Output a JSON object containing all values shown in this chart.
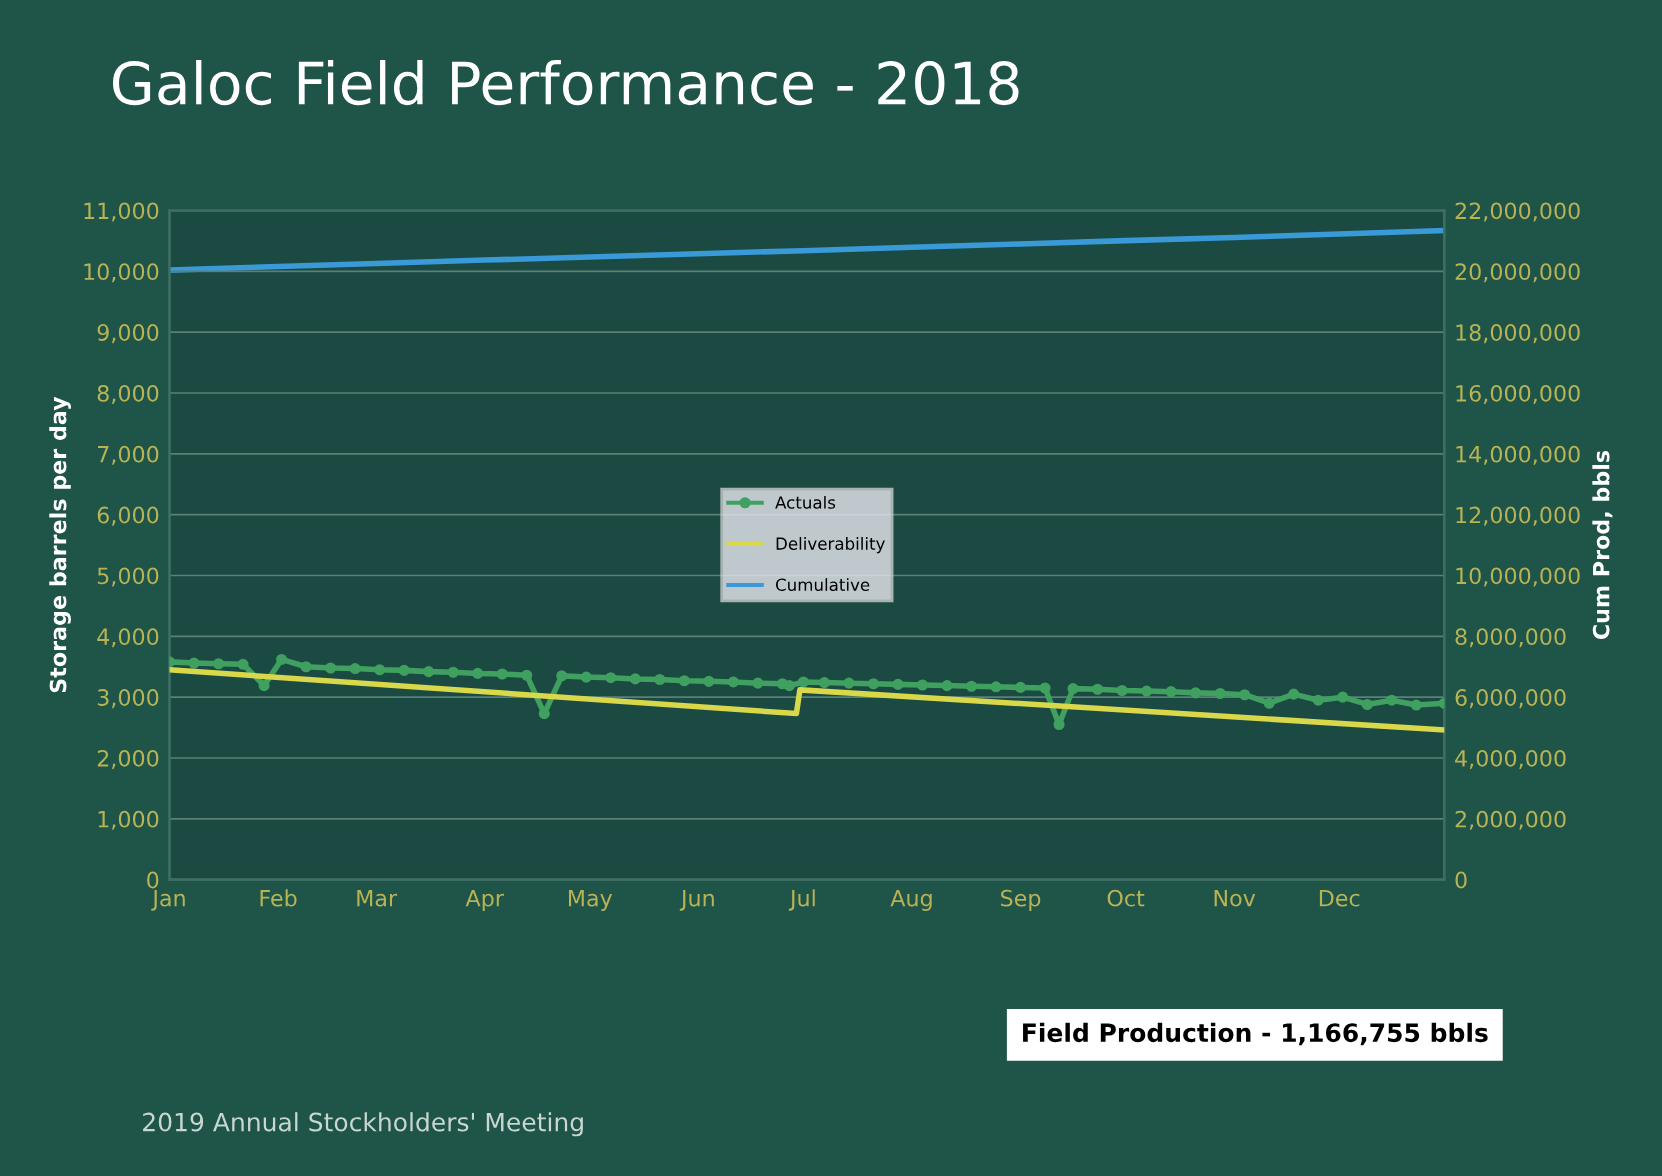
{
  "chart_data": {
    "type": "line",
    "title": "Galoc Field Performance - 2018",
    "ylabel": "Storage barrels per day",
    "y2label": "Cum Prod, bbls",
    "xlim": [
      "2018-01-01",
      "2018-12-31"
    ],
    "xticks": [
      {
        "value": "2018-01-01",
        "label": "Jan"
      },
      {
        "value": "2018-02-01",
        "label": "Feb"
      },
      {
        "value": "2018-03-01",
        "label": "Mar"
      },
      {
        "value": "2018-04-01",
        "label": "Apr"
      },
      {
        "value": "2018-05-01",
        "label": "May"
      },
      {
        "value": "2018-06-01",
        "label": "Jun"
      },
      {
        "value": "2018-07-01",
        "label": "Jul"
      },
      {
        "value": "2018-08-01",
        "label": "Aug"
      },
      {
        "value": "2018-09-01",
        "label": "Sep"
      },
      {
        "value": "2018-10-01",
        "label": "Oct"
      },
      {
        "value": "2018-11-01",
        "label": "Nov"
      },
      {
        "value": "2018-12-01",
        "label": "Dec"
      }
    ],
    "ylim": [
      0,
      11000
    ],
    "yticks": [
      {
        "value": 0,
        "label": "0"
      },
      {
        "value": 1000,
        "label": "1,000"
      },
      {
        "value": 2000,
        "label": "2,000"
      },
      {
        "value": 3000,
        "label": "3,000"
      },
      {
        "value": 4000,
        "label": "4,000"
      },
      {
        "value": 5000,
        "label": "5,000"
      },
      {
        "value": 6000,
        "label": "6,000"
      },
      {
        "value": 7000,
        "label": "7,000"
      },
      {
        "value": 8000,
        "label": "8,000"
      },
      {
        "value": 9000,
        "label": "9,000"
      },
      {
        "value": 10000,
        "label": "10,000"
      },
      {
        "value": 11000,
        "label": "11,000"
      }
    ],
    "y2lim": [
      0,
      22000000
    ],
    "y2ticks": [
      {
        "value": 0,
        "label": "0"
      },
      {
        "value": 2000000,
        "label": "2,000,000"
      },
      {
        "value": 4000000,
        "label": "4,000,000"
      },
      {
        "value": 6000000,
        "label": "6,000,000"
      },
      {
        "value": 8000000,
        "label": "8,000,000"
      },
      {
        "value": 10000000,
        "label": "10,000,000"
      },
      {
        "value": 12000000,
        "label": "12,000,000"
      },
      {
        "value": 14000000,
        "label": "14,000,000"
      },
      {
        "value": 16000000,
        "label": "16,000,000"
      },
      {
        "value": 18000000,
        "label": "18,000,000"
      },
      {
        "value": 20000000,
        "label": "20,000,000"
      },
      {
        "value": 22000000,
        "label": "22,000,000"
      }
    ],
    "grid": "y",
    "legend": "center",
    "series": [
      {
        "name": "Actuals",
        "color": "#3fa060",
        "marker": "circle",
        "x": [
          "2018-01-01",
          "2018-01-08",
          "2018-01-15",
          "2018-01-22",
          "2018-01-28",
          "2018-02-02",
          "2018-02-09",
          "2018-02-16",
          "2018-02-23",
          "2018-03-02",
          "2018-03-09",
          "2018-03-16",
          "2018-03-23",
          "2018-03-30",
          "2018-04-06",
          "2018-04-13",
          "2018-04-18",
          "2018-04-23",
          "2018-04-30",
          "2018-05-07",
          "2018-05-14",
          "2018-05-21",
          "2018-05-28",
          "2018-06-04",
          "2018-06-11",
          "2018-06-18",
          "2018-06-25",
          "2018-06-27",
          "2018-07-01",
          "2018-07-07",
          "2018-07-14",
          "2018-07-21",
          "2018-07-28",
          "2018-08-04",
          "2018-08-11",
          "2018-08-18",
          "2018-08-25",
          "2018-09-01",
          "2018-09-08",
          "2018-09-12",
          "2018-09-16",
          "2018-09-23",
          "2018-09-30",
          "2018-10-07",
          "2018-10-14",
          "2018-10-21",
          "2018-10-28",
          "2018-11-04",
          "2018-11-11",
          "2018-11-18",
          "2018-11-25",
          "2018-12-02",
          "2018-12-09",
          "2018-12-16",
          "2018-12-23",
          "2018-12-31"
        ],
        "values": [
          3580,
          3560,
          3550,
          3540,
          3190,
          3620,
          3500,
          3480,
          3470,
          3450,
          3440,
          3420,
          3410,
          3390,
          3380,
          3360,
          2730,
          3350,
          3330,
          3320,
          3300,
          3290,
          3270,
          3260,
          3250,
          3230,
          3220,
          3190,
          3250,
          3240,
          3230,
          3220,
          3210,
          3200,
          3190,
          3180,
          3170,
          3160,
          3150,
          2550,
          3140,
          3130,
          3110,
          3100,
          3090,
          3070,
          3060,
          3040,
          2900,
          3050,
          2950,
          3000,
          2880,
          2950,
          2870,
          2900
        ]
      },
      {
        "name": "Deliverability",
        "color": "#d8d84a",
        "x": [
          "2018-01-01",
          "2018-06-29",
          "2018-06-30",
          "2018-12-31"
        ],
        "values": [
          3450,
          2730,
          3120,
          2460
        ]
      },
      {
        "name": "Cumulative",
        "color": "#3a9ad8",
        "axis": "y2",
        "x": [
          "2018-01-01",
          "2018-02-01",
          "2018-03-01",
          "2018-04-01",
          "2018-05-01",
          "2018-06-01",
          "2018-07-01",
          "2018-08-01",
          "2018-09-01",
          "2018-10-01",
          "2018-11-01",
          "2018-12-01",
          "2018-12-31"
        ],
        "values": [
          20040000,
          20160000,
          20260000,
          20370000,
          20470000,
          20580000,
          20680000,
          20790000,
          20900000,
          21010000,
          21110000,
          21230000,
          21340000
        ]
      }
    ],
    "annotations": [
      "Field Production - 1,166,755 bbls",
      "2019 Annual Stockholders' Meeting"
    ]
  }
}
